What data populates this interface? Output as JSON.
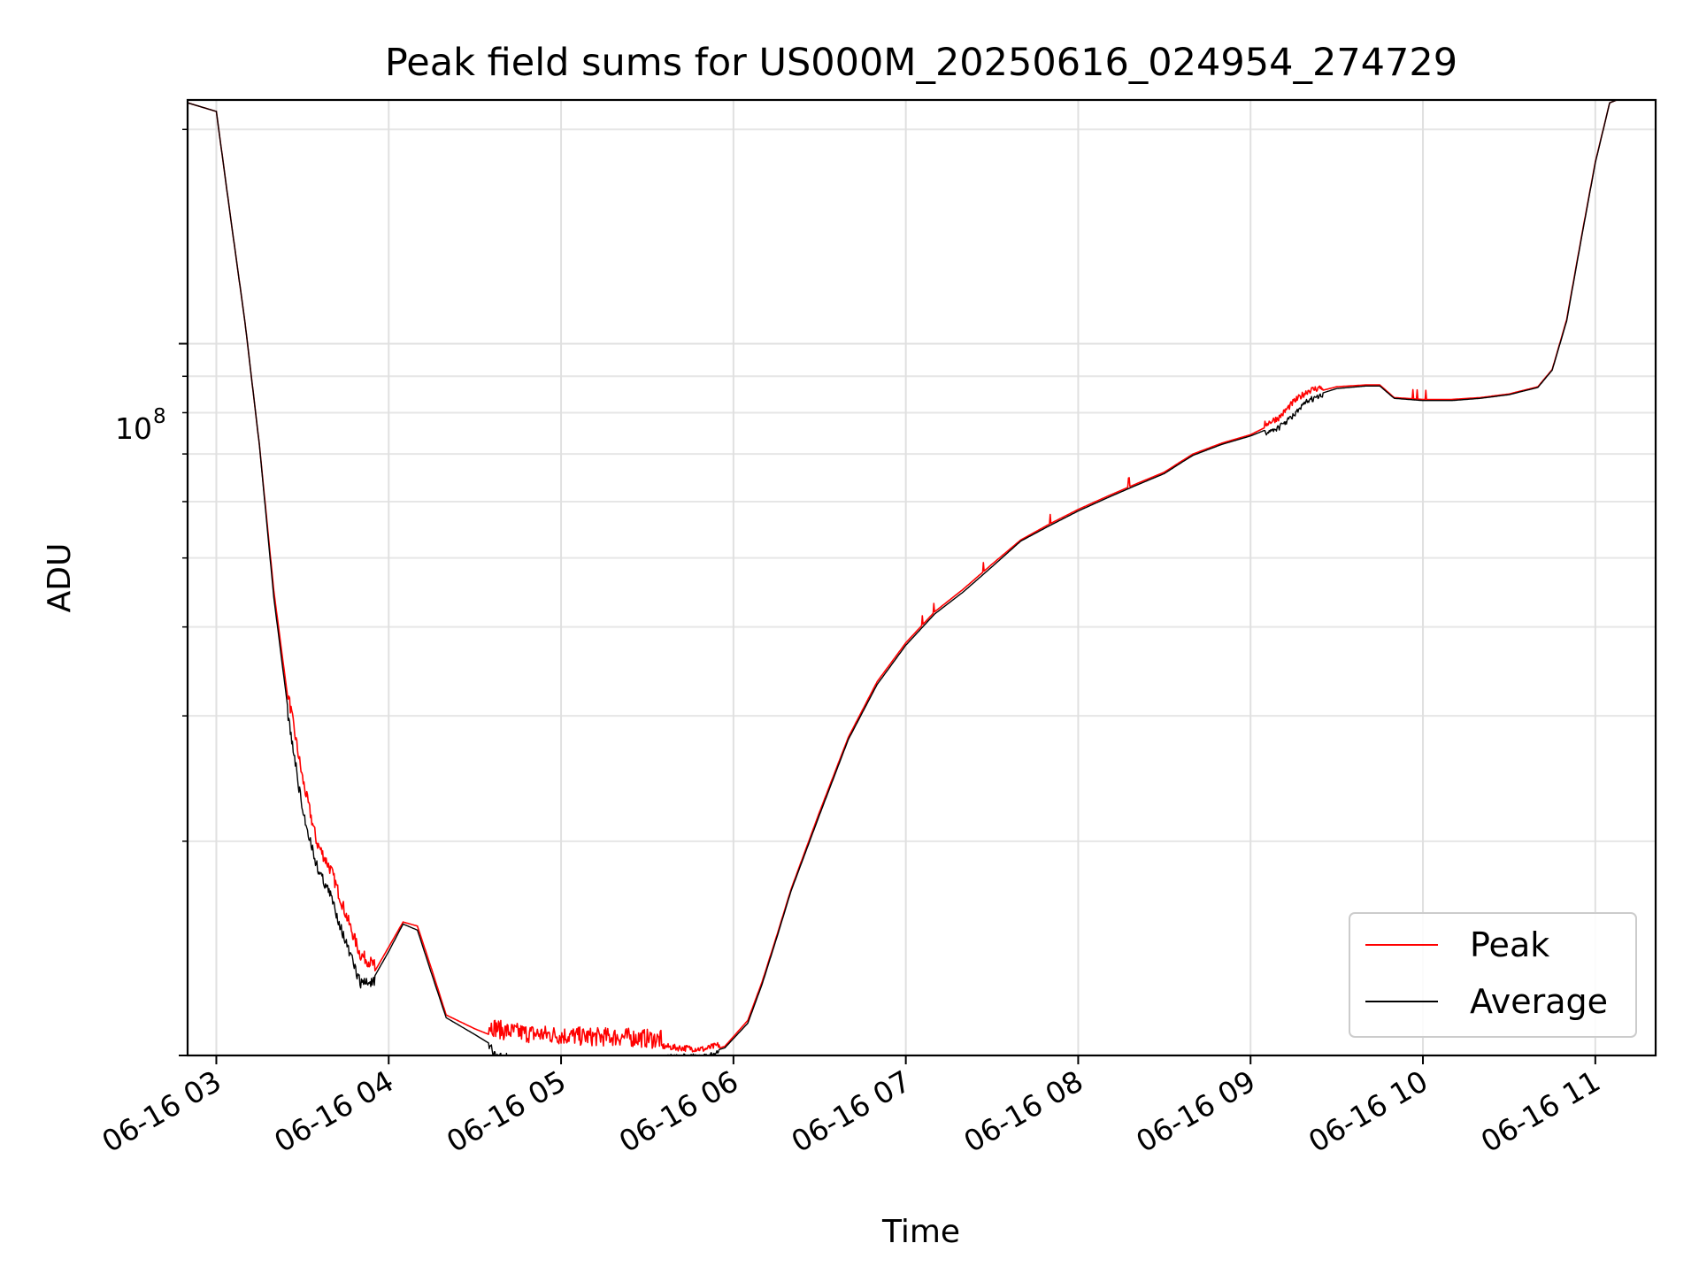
{
  "chart_data": {
    "type": "line",
    "title": "Peak field sums for US000M_20250616_024954_274729",
    "xlabel": "Time",
    "ylabel": "ADU",
    "x_axis": {
      "type": "time",
      "range": [
        "2025-06-16 02:50",
        "2025-06-16 11:21"
      ],
      "tick_labels": [
        "06-16 03",
        "06-16 04",
        "06-16 05",
        "06-16 06",
        "06-16 07",
        "06-16 08",
        "06-16 09",
        "06-16 10",
        "06-16 11"
      ],
      "tick_label_rotation_deg": -30
    },
    "y_axis": {
      "scale": "log",
      "range": [
        10000000,
        220000000
      ],
      "major_tick_labels": [
        {
          "value": 100000000,
          "base": "10",
          "exponent": "8"
        }
      ]
    },
    "grid": true,
    "legend": {
      "position": "bottom-right"
    },
    "series": [
      {
        "name": "Peak",
        "color": "#ff0000",
        "x": [
          "2025-06-16 02:50",
          "2025-06-16 03:00",
          "2025-06-16 03:05",
          "2025-06-16 03:10",
          "2025-06-16 03:15",
          "2025-06-16 03:20",
          "2025-06-16 03:25",
          "2025-06-16 03:30",
          "2025-06-16 03:35",
          "2025-06-16 03:40",
          "2025-06-16 03:45",
          "2025-06-16 03:50",
          "2025-06-16 03:55",
          "2025-06-16 04:00",
          "2025-06-16 04:05",
          "2025-06-16 04:10",
          "2025-06-16 04:15",
          "2025-06-16 04:20",
          "2025-06-16 04:30",
          "2025-06-16 04:40",
          "2025-06-16 04:50",
          "2025-06-16 05:00",
          "2025-06-16 05:10",
          "2025-06-16 05:20",
          "2025-06-16 05:30",
          "2025-06-16 05:40",
          "2025-06-16 05:50",
          "2025-06-16 05:57",
          "2025-06-16 06:05",
          "2025-06-16 06:10",
          "2025-06-16 06:15",
          "2025-06-16 06:20",
          "2025-06-16 06:30",
          "2025-06-16 06:40",
          "2025-06-16 06:50",
          "2025-06-16 07:00",
          "2025-06-16 07:10",
          "2025-06-16 07:20",
          "2025-06-16 07:30",
          "2025-06-16 07:40",
          "2025-06-16 07:50",
          "2025-06-16 08:00",
          "2025-06-16 08:10",
          "2025-06-16 08:20",
          "2025-06-16 08:30",
          "2025-06-16 08:35",
          "2025-06-16 08:40",
          "2025-06-16 08:50",
          "2025-06-16 09:00",
          "2025-06-16 09:10",
          "2025-06-16 09:15",
          "2025-06-16 09:20",
          "2025-06-16 09:30",
          "2025-06-16 09:40",
          "2025-06-16 09:45",
          "2025-06-16 09:50",
          "2025-06-16 10:00",
          "2025-06-16 10:10",
          "2025-06-16 10:20",
          "2025-06-16 10:30",
          "2025-06-16 10:40",
          "2025-06-16 10:45",
          "2025-06-16 10:50",
          "2025-06-16 10:55",
          "2025-06-16 11:00",
          "2025-06-16 11:05",
          "2025-06-16 11:10",
          "2025-06-16 11:15",
          "2025-06-16 11:21"
        ],
        "y": [
          218000000,
          212000000,
          150000000,
          107000000,
          72000000,
          45000000,
          31500000,
          24000000,
          19500000,
          17800000,
          15500000,
          13600000,
          13100000,
          14200000,
          15400000,
          15200000,
          13200000,
          11400000,
          10900000,
          10500000,
          10400000,
          10350000,
          10300000,
          10300000,
          10250000,
          10150000,
          10100000,
          10300000,
          11200000,
          12700000,
          14700000,
          17100000,
          22000000,
          28000000,
          33500000,
          38000000,
          42000000,
          45200000,
          49000000,
          53000000,
          55800000,
          58500000,
          61000000,
          63500000,
          66000000,
          68000000,
          70000000,
          72500000,
          74500000,
          78000000,
          82000000,
          85000000,
          87000000,
          87500000,
          87500000,
          84000000,
          83500000,
          83500000,
          84000000,
          85000000,
          87000000,
          92000000,
          108000000,
          140000000,
          180000000,
          218000000,
          222000000,
          222000000,
          222000000
        ]
      },
      {
        "name": "Average",
        "color": "#000000",
        "x": [
          "2025-06-16 02:50",
          "2025-06-16 03:00",
          "2025-06-16 03:05",
          "2025-06-16 03:10",
          "2025-06-16 03:15",
          "2025-06-16 03:20",
          "2025-06-16 03:25",
          "2025-06-16 03:30",
          "2025-06-16 03:35",
          "2025-06-16 03:40",
          "2025-06-16 03:45",
          "2025-06-16 03:50",
          "2025-06-16 03:55",
          "2025-06-16 04:00",
          "2025-06-16 04:05",
          "2025-06-16 04:10",
          "2025-06-16 04:15",
          "2025-06-16 04:20",
          "2025-06-16 04:30",
          "2025-06-16 04:40",
          "2025-06-16 04:50",
          "2025-06-16 05:00",
          "2025-06-16 05:10",
          "2025-06-16 05:20",
          "2025-06-16 05:30",
          "2025-06-16 05:40",
          "2025-06-16 05:50",
          "2025-06-16 05:57",
          "2025-06-16 06:05",
          "2025-06-16 06:10",
          "2025-06-16 06:15",
          "2025-06-16 06:20",
          "2025-06-16 06:30",
          "2025-06-16 06:40",
          "2025-06-16 06:50",
          "2025-06-16 07:00",
          "2025-06-16 07:10",
          "2025-06-16 07:20",
          "2025-06-16 07:30",
          "2025-06-16 07:40",
          "2025-06-16 07:50",
          "2025-06-16 08:00",
          "2025-06-16 08:10",
          "2025-06-16 08:20",
          "2025-06-16 08:30",
          "2025-06-16 08:35",
          "2025-06-16 08:40",
          "2025-06-16 08:50",
          "2025-06-16 09:00",
          "2025-06-16 09:10",
          "2025-06-16 09:15",
          "2025-06-16 09:20",
          "2025-06-16 09:30",
          "2025-06-16 09:40",
          "2025-06-16 09:45",
          "2025-06-16 09:50",
          "2025-06-16 10:00",
          "2025-06-16 10:10",
          "2025-06-16 10:20",
          "2025-06-16 10:30",
          "2025-06-16 10:40",
          "2025-06-16 10:45",
          "2025-06-16 10:50",
          "2025-06-16 10:55",
          "2025-06-16 11:00",
          "2025-06-16 11:05",
          "2025-06-16 11:10",
          "2025-06-16 11:15",
          "2025-06-16 11:21"
        ],
        "y": [
          218000000,
          212000000,
          150000000,
          107000000,
          72000000,
          44000000,
          30500000,
          22500000,
          18800000,
          17000000,
          14700000,
          12900000,
          12900000,
          14000000,
          15300000,
          15000000,
          13000000,
          11300000,
          10700000,
          10100000,
          9900000,
          9800000,
          9800000,
          9900000,
          10000000,
          10050000,
          10050000,
          10250000,
          11100000,
          12600000,
          14600000,
          17000000,
          21800000,
          27800000,
          33200000,
          37700000,
          41700000,
          44800000,
          48600000,
          52800000,
          55500000,
          58200000,
          60700000,
          63200000,
          65700000,
          67700000,
          69700000,
          72200000,
          74200000,
          77000000,
          80000000,
          84000000,
          86500000,
          87200000,
          87200000,
          83800000,
          83200000,
          83200000,
          83800000,
          84800000,
          86800000,
          91800000,
          107500000,
          139500000,
          179500000,
          218000000,
          222000000,
          222000000,
          222000000
        ]
      }
    ]
  }
}
